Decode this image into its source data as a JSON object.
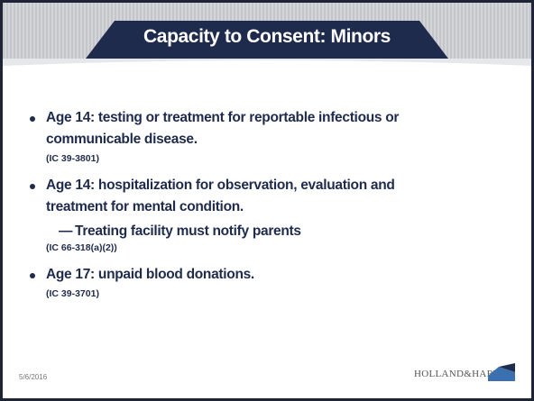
{
  "title": "Capacity to Consent: Minors",
  "bullets": [
    {
      "lines": [
        "Age 14:  testing or treatment for reportable infectious or",
        "communicable disease."
      ],
      "citation": "(IC 39-3801)"
    },
    {
      "lines": [
        "Age 14:  hospitalization for observation, evaluation and",
        "treatment for mental condition."
      ],
      "sub": "Treating facility must notify parents",
      "citation": "(IC 66-318(a)(2))"
    },
    {
      "lines": [
        "Age 17:  unpaid blood donations."
      ],
      "citation": "(IC 39-3701)"
    }
  ],
  "footer": {
    "date": "5/6/2016",
    "logo": "HOLLAND&HART."
  }
}
